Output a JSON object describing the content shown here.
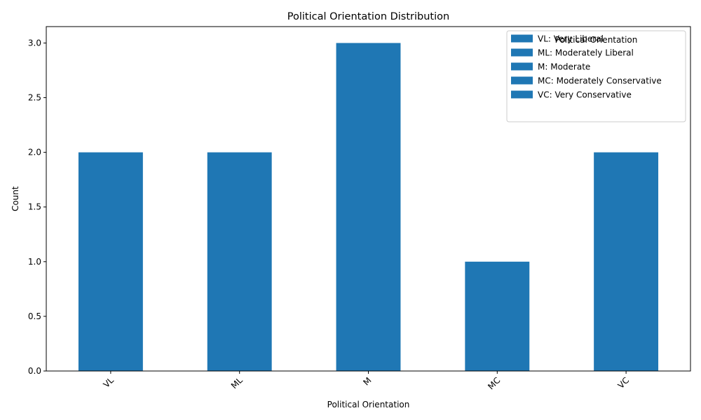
{
  "chart_data": {
    "type": "bar",
    "title": "Political Orientation Distribution",
    "xlabel": "Political Orientation",
    "ylabel": "Count",
    "categories": [
      "VL",
      "ML",
      "M",
      "MC",
      "VC"
    ],
    "values": [
      2,
      2,
      3,
      1,
      2
    ],
    "ylim": [
      0,
      3.15
    ],
    "yticks": [
      "0.0",
      "0.5",
      "1.0",
      "1.5",
      "2.0",
      "2.5",
      "3.0"
    ],
    "bar_color": "#1f77b4",
    "grid": false,
    "legend": {
      "title": "Political Orientation",
      "placement": "top-right",
      "entries": [
        "VL: Very Liberal",
        "ML: Moderately Liberal",
        "M: Moderate",
        "MC: Moderately Conservative",
        "VC: Very Conservative"
      ]
    }
  }
}
